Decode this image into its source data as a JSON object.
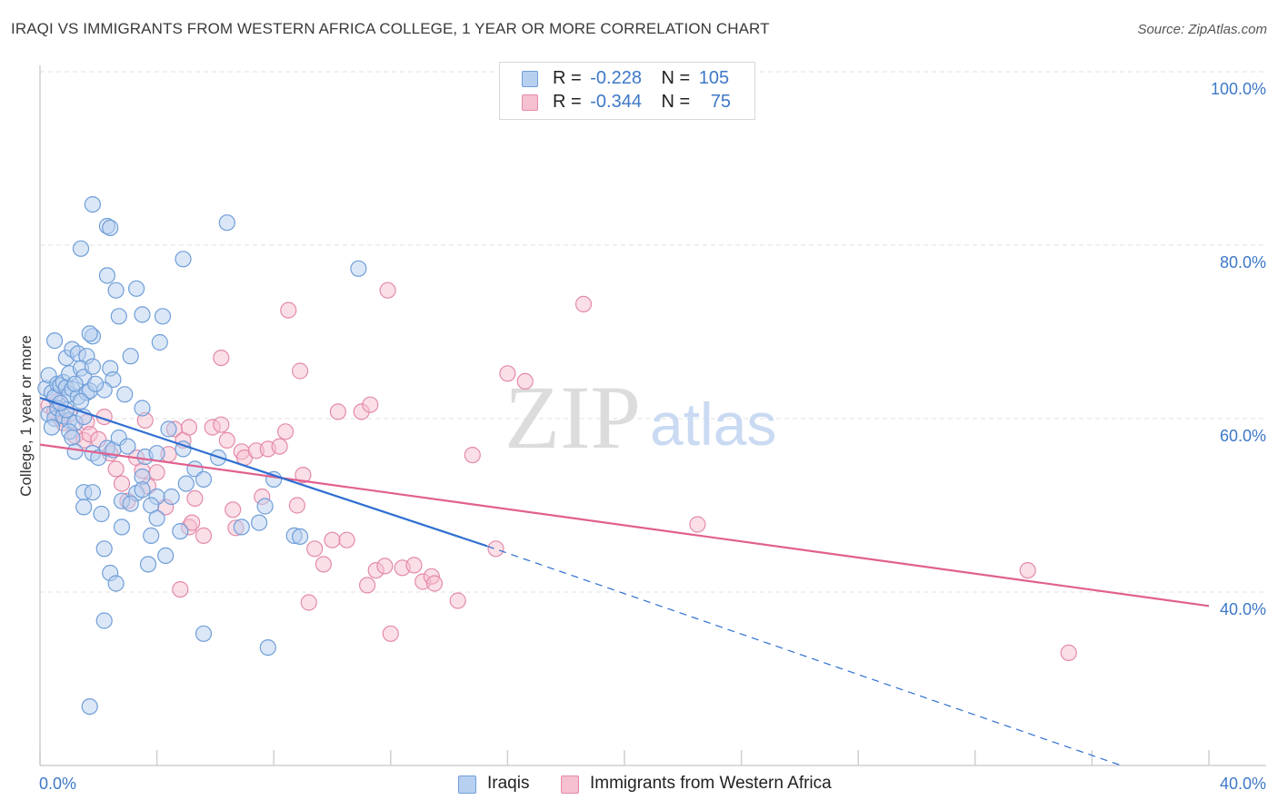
{
  "header": {
    "title": "IRAQI VS IMMIGRANTS FROM WESTERN AFRICA COLLEGE, 1 YEAR OR MORE CORRELATION CHART",
    "source": "Source: ZipAtlas.com"
  },
  "watermark": {
    "zip": "ZIP",
    "atlas": "atlas"
  },
  "legend": {
    "rows": [
      {
        "r_label": "R =",
        "r_value": "-0.228",
        "n_label": "N =",
        "n_value": "105"
      },
      {
        "r_label": "R =",
        "r_value": "-0.344",
        "n_label": "N =",
        "n_value": "75"
      }
    ]
  },
  "colors": {
    "blue_fill": "#b8d0f0",
    "blue_stroke": "#6f9ed8",
    "blue_line": "#2f6fd0",
    "pink_fill": "#f5c0d0",
    "pink_stroke": "#e48aaa",
    "pink_line": "#e0608e",
    "tick_text": "#3d78c8",
    "grid": "#e2e2e2"
  },
  "chart_data": {
    "type": "scatter",
    "title": "IRAQI VS IMMIGRANTS FROM WESTERN AFRICA COLLEGE, 1 YEAR OR MORE CORRELATION CHART",
    "xlabel": "",
    "ylabel": "College, 1 year or more",
    "xlim": [
      0,
      40
    ],
    "ylim": [
      20,
      104
    ],
    "x_tick_labels": [
      "0.0%",
      "40.0%"
    ],
    "y_ticks": [
      40,
      60,
      80,
      100
    ],
    "y_tick_labels": [
      "40.0%",
      "60.0%",
      "80.0%",
      "100.0%"
    ],
    "grid": true,
    "legend_position": "top-center",
    "series": [
      {
        "name": "Iraqis",
        "r": -0.228,
        "n": 105,
        "trend": {
          "x0": 0,
          "y0": 62.4,
          "x1": 15.3,
          "y1": 45.3,
          "dashed_to_x": 37.0,
          "dashed_to_y": 20.0
        },
        "points": [
          [
            0.2,
            63.5
          ],
          [
            0.3,
            65.0
          ],
          [
            0.4,
            63.0
          ],
          [
            0.5,
            62.5
          ],
          [
            0.6,
            64.0
          ],
          [
            0.7,
            63.8
          ],
          [
            0.8,
            64.2
          ],
          [
            0.9,
            63.6
          ],
          [
            1.0,
            62.8
          ],
          [
            1.1,
            63.4
          ],
          [
            0.3,
            60.5
          ],
          [
            0.5,
            60.0
          ],
          [
            0.6,
            61.2
          ],
          [
            0.8,
            60.3
          ],
          [
            1.0,
            59.8
          ],
          [
            1.2,
            59.5
          ],
          [
            0.4,
            59.0
          ],
          [
            0.9,
            61.0
          ],
          [
            1.5,
            60.2
          ],
          [
            1.3,
            62.5
          ],
          [
            0.5,
            69.0
          ],
          [
            0.9,
            67.0
          ],
          [
            1.1,
            68.0
          ],
          [
            1.3,
            67.5
          ],
          [
            1.6,
            67.2
          ],
          [
            1.8,
            69.5
          ],
          [
            1.7,
            69.8
          ],
          [
            1.0,
            65.2
          ],
          [
            1.4,
            65.8
          ],
          [
            1.5,
            64.8
          ],
          [
            1.2,
            64.0
          ],
          [
            1.6,
            63.0
          ],
          [
            1.7,
            63.2
          ],
          [
            1.4,
            62.0
          ],
          [
            2.4,
            65.8
          ],
          [
            2.5,
            64.5
          ],
          [
            3.1,
            67.2
          ],
          [
            3.5,
            61.2
          ],
          [
            2.2,
            63.3
          ],
          [
            1.8,
            66.0
          ],
          [
            1.8,
            84.7
          ],
          [
            2.3,
            82.2
          ],
          [
            2.4,
            82.0
          ],
          [
            1.4,
            79.6
          ],
          [
            2.3,
            76.5
          ],
          [
            2.6,
            74.8
          ],
          [
            3.3,
            75.0
          ],
          [
            2.7,
            71.8
          ],
          [
            3.5,
            72.0
          ],
          [
            4.2,
            71.8
          ],
          [
            4.9,
            78.4
          ],
          [
            6.4,
            82.6
          ],
          [
            10.9,
            77.3
          ],
          [
            4.1,
            68.8
          ],
          [
            1.0,
            58.5
          ],
          [
            1.1,
            57.8
          ],
          [
            1.2,
            56.2
          ],
          [
            1.8,
            56.0
          ],
          [
            2.0,
            55.5
          ],
          [
            2.3,
            56.6
          ],
          [
            2.5,
            56.4
          ],
          [
            2.7,
            57.8
          ],
          [
            3.0,
            56.8
          ],
          [
            3.6,
            55.6
          ],
          [
            4.0,
            56.0
          ],
          [
            4.4,
            58.8
          ],
          [
            4.9,
            56.5
          ],
          [
            5.3,
            54.2
          ],
          [
            6.1,
            55.5
          ],
          [
            3.5,
            53.3
          ],
          [
            3.3,
            51.4
          ],
          [
            3.5,
            51.8
          ],
          [
            4.0,
            51.0
          ],
          [
            4.5,
            51.0
          ],
          [
            5.0,
            52.5
          ],
          [
            1.5,
            51.5
          ],
          [
            1.8,
            51.5
          ],
          [
            2.8,
            50.5
          ],
          [
            3.1,
            50.2
          ],
          [
            3.8,
            50.0
          ],
          [
            1.5,
            49.8
          ],
          [
            2.1,
            49.0
          ],
          [
            4.0,
            48.5
          ],
          [
            7.5,
            48.0
          ],
          [
            2.8,
            47.5
          ],
          [
            3.8,
            46.5
          ],
          [
            4.8,
            47.0
          ],
          [
            6.9,
            47.5
          ],
          [
            8.7,
            46.5
          ],
          [
            8.9,
            46.4
          ],
          [
            7.7,
            49.9
          ],
          [
            2.2,
            45.0
          ],
          [
            4.3,
            44.2
          ],
          [
            3.7,
            43.2
          ],
          [
            2.4,
            42.2
          ],
          [
            2.6,
            41.0
          ],
          [
            2.2,
            36.7
          ],
          [
            5.6,
            35.2
          ],
          [
            7.8,
            33.6
          ],
          [
            1.7,
            26.8
          ],
          [
            5.6,
            53.0
          ],
          [
            2.9,
            62.8
          ],
          [
            1.9,
            64.0
          ],
          [
            0.7,
            61.8
          ],
          [
            8.0,
            53.0
          ]
        ]
      },
      {
        "name": "Immigrants from Western Africa",
        "r": -0.344,
        "n": 75,
        "trend": {
          "x0": 0,
          "y0": 57.0,
          "x1": 40.0,
          "y1": 38.4
        },
        "points": [
          [
            0.3,
            61.5
          ],
          [
            0.5,
            60.8
          ],
          [
            0.6,
            62.0
          ],
          [
            0.7,
            60.0
          ],
          [
            0.8,
            59.5
          ],
          [
            1.0,
            60.5
          ],
          [
            1.2,
            58.0
          ],
          [
            1.5,
            57.5
          ],
          [
            1.6,
            59.6
          ],
          [
            1.7,
            58.2
          ],
          [
            2.2,
            60.2
          ],
          [
            2.4,
            56.0
          ],
          [
            2.6,
            54.2
          ],
          [
            2.8,
            52.5
          ],
          [
            3.0,
            50.5
          ],
          [
            3.3,
            55.5
          ],
          [
            3.5,
            54.0
          ],
          [
            3.7,
            52.2
          ],
          [
            4.0,
            53.8
          ],
          [
            4.3,
            49.8
          ],
          [
            4.4,
            55.9
          ],
          [
            4.6,
            58.8
          ],
          [
            4.9,
            57.5
          ],
          [
            5.1,
            47.5
          ],
          [
            5.2,
            48.0
          ],
          [
            5.3,
            50.8
          ],
          [
            5.6,
            46.5
          ],
          [
            5.9,
            59.0
          ],
          [
            6.2,
            59.3
          ],
          [
            6.4,
            57.5
          ],
          [
            6.6,
            49.5
          ],
          [
            6.7,
            47.4
          ],
          [
            6.9,
            56.2
          ],
          [
            7.0,
            55.5
          ],
          [
            7.4,
            56.3
          ],
          [
            7.8,
            56.5
          ],
          [
            7.6,
            51.0
          ],
          [
            8.2,
            56.8
          ],
          [
            8.4,
            58.5
          ],
          [
            8.8,
            50.0
          ],
          [
            9.0,
            53.5
          ],
          [
            9.4,
            45.0
          ],
          [
            9.7,
            43.2
          ],
          [
            10.0,
            46.0
          ],
          [
            10.5,
            46.0
          ],
          [
            11.0,
            60.8
          ],
          [
            11.2,
            40.8
          ],
          [
            11.5,
            42.5
          ],
          [
            11.8,
            43.0
          ],
          [
            12.0,
            35.2
          ],
          [
            12.4,
            42.8
          ],
          [
            12.8,
            43.1
          ],
          [
            13.1,
            41.2
          ],
          [
            13.4,
            41.8
          ],
          [
            13.5,
            41.0
          ],
          [
            14.3,
            39.0
          ],
          [
            14.8,
            55.8
          ],
          [
            15.6,
            45.0
          ],
          [
            16.0,
            65.2
          ],
          [
            16.6,
            64.3
          ],
          [
            18.6,
            73.2
          ],
          [
            11.9,
            74.8
          ],
          [
            8.5,
            72.5
          ],
          [
            8.9,
            65.5
          ],
          [
            6.2,
            67.0
          ],
          [
            10.2,
            60.8
          ],
          [
            11.3,
            61.6
          ],
          [
            22.5,
            47.8
          ],
          [
            33.8,
            42.5
          ],
          [
            35.2,
            33.0
          ],
          [
            4.8,
            40.3
          ],
          [
            9.2,
            38.8
          ],
          [
            5.1,
            59.0
          ],
          [
            3.6,
            59.8
          ],
          [
            2.0,
            57.6
          ]
        ]
      }
    ]
  },
  "bottom_legend": {
    "items": [
      {
        "label": "Iraqis"
      },
      {
        "label": "Immigrants from Western Africa"
      }
    ]
  }
}
